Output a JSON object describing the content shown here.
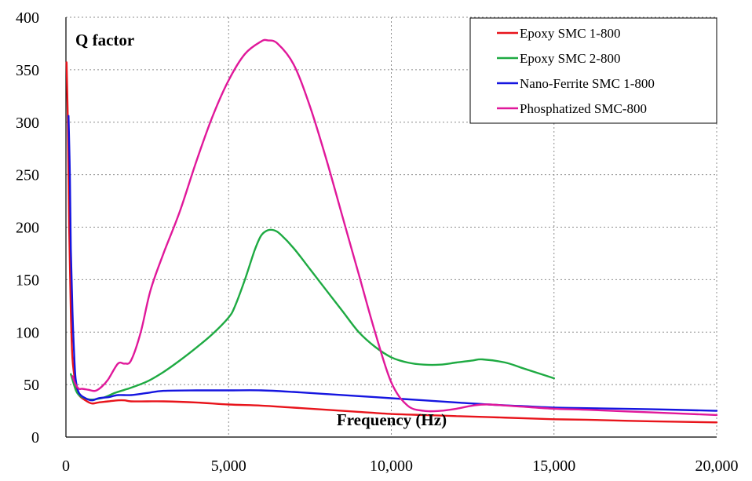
{
  "chart_data": {
    "type": "line",
    "xlabel": "Frequency (Hz)",
    "ylabel": "Q factor",
    "xlim": [
      0,
      20000
    ],
    "ylim": [
      0,
      400
    ],
    "x_ticks": [
      "0",
      "5,000",
      "10,000",
      "15,000",
      "20,000"
    ],
    "y_ticks": [
      "0",
      "50",
      "100",
      "150",
      "200",
      "250",
      "300",
      "350",
      "400"
    ],
    "grid": true,
    "legend_position": "top-right",
    "series": [
      {
        "name": "Epoxy SMC 1-800",
        "color": "#e8141b",
        "x": [
          20,
          60,
          100,
          150,
          200,
          300,
          400,
          600,
          800,
          1000,
          1300,
          1600,
          1800,
          2000,
          2500,
          3000,
          4000,
          5000,
          6000,
          7000,
          8000,
          9000,
          10000,
          11000,
          12000,
          13000,
          14000,
          15000,
          16000,
          18000,
          20000
        ],
        "y": [
          357,
          300,
          200,
          120,
          75,
          50,
          40,
          35,
          32,
          33,
          34,
          35,
          35,
          34,
          34,
          34,
          33,
          31,
          30,
          28,
          26,
          24,
          22,
          21,
          20,
          19,
          18,
          17,
          16.5,
          15,
          14
        ]
      },
      {
        "name": "Epoxy SMC 2-800",
        "color": "#1eaa42",
        "x": [
          150,
          300,
          400,
          500,
          700,
          900,
          1200,
          1500,
          1800,
          2000,
          2500,
          3000,
          3500,
          4000,
          4500,
          5000,
          5200,
          5500,
          5800,
          6000,
          6200,
          6400,
          6600,
          7000,
          7500,
          8000,
          8500,
          9000,
          9500,
          10000,
          10500,
          11000,
          11500,
          12000,
          12500,
          12800,
          13500,
          14000,
          14500,
          15000
        ],
        "y": [
          60,
          45,
          40,
          38,
          36,
          36,
          38,
          42,
          45,
          47,
          53,
          62,
          73,
          85,
          98,
          114,
          125,
          150,
          178,
          192,
          197,
          197,
          193,
          180,
          160,
          140,
          120,
          100,
          86,
          76,
          71,
          69,
          69,
          71,
          73,
          74,
          71,
          66,
          61,
          56
        ]
      },
      {
        "name": "Nano-Ferrite SMC 1-800",
        "color": "#1515e0",
        "x": [
          80,
          120,
          150,
          200,
          250,
          300,
          400,
          600,
          800,
          1000,
          1300,
          1600,
          2000,
          2500,
          3000,
          4000,
          5000,
          6000,
          7000,
          8000,
          9000,
          10000,
          11000,
          12000,
          13000,
          14000,
          15000,
          16000,
          18000,
          20000
        ],
        "y": [
          306,
          250,
          180,
          120,
          80,
          55,
          42,
          37,
          35,
          37,
          38,
          40,
          40,
          42,
          44,
          44.5,
          44.5,
          44.5,
          43,
          41,
          39,
          37,
          35,
          33,
          31,
          29.5,
          28,
          27.5,
          26.5,
          25
        ]
      },
      {
        "name": "Phosphatized SMC-800",
        "color": "#e0189a",
        "x": [
          200,
          300,
          400,
          500,
          700,
          900,
          1100,
          1300,
          1600,
          1800,
          2000,
          2300,
          2600,
          3000,
          3500,
          4000,
          4500,
          5000,
          5500,
          6000,
          6200,
          6500,
          7000,
          7500,
          8000,
          8500,
          9000,
          9500,
          10000,
          10500,
          11000,
          11500,
          12000,
          12500,
          13000,
          14000,
          15000,
          16000,
          18000,
          20000
        ],
        "y": [
          58,
          50,
          46,
          46,
          45,
          44,
          48,
          55,
          70,
          70,
          73,
          100,
          140,
          175,
          215,
          262,
          305,
          340,
          365,
          377,
          378,
          375,
          355,
          315,
          265,
          210,
          155,
          100,
          52,
          30,
          25,
          25,
          27,
          30,
          31,
          29,
          27,
          26,
          23.5,
          21
        ]
      }
    ]
  }
}
